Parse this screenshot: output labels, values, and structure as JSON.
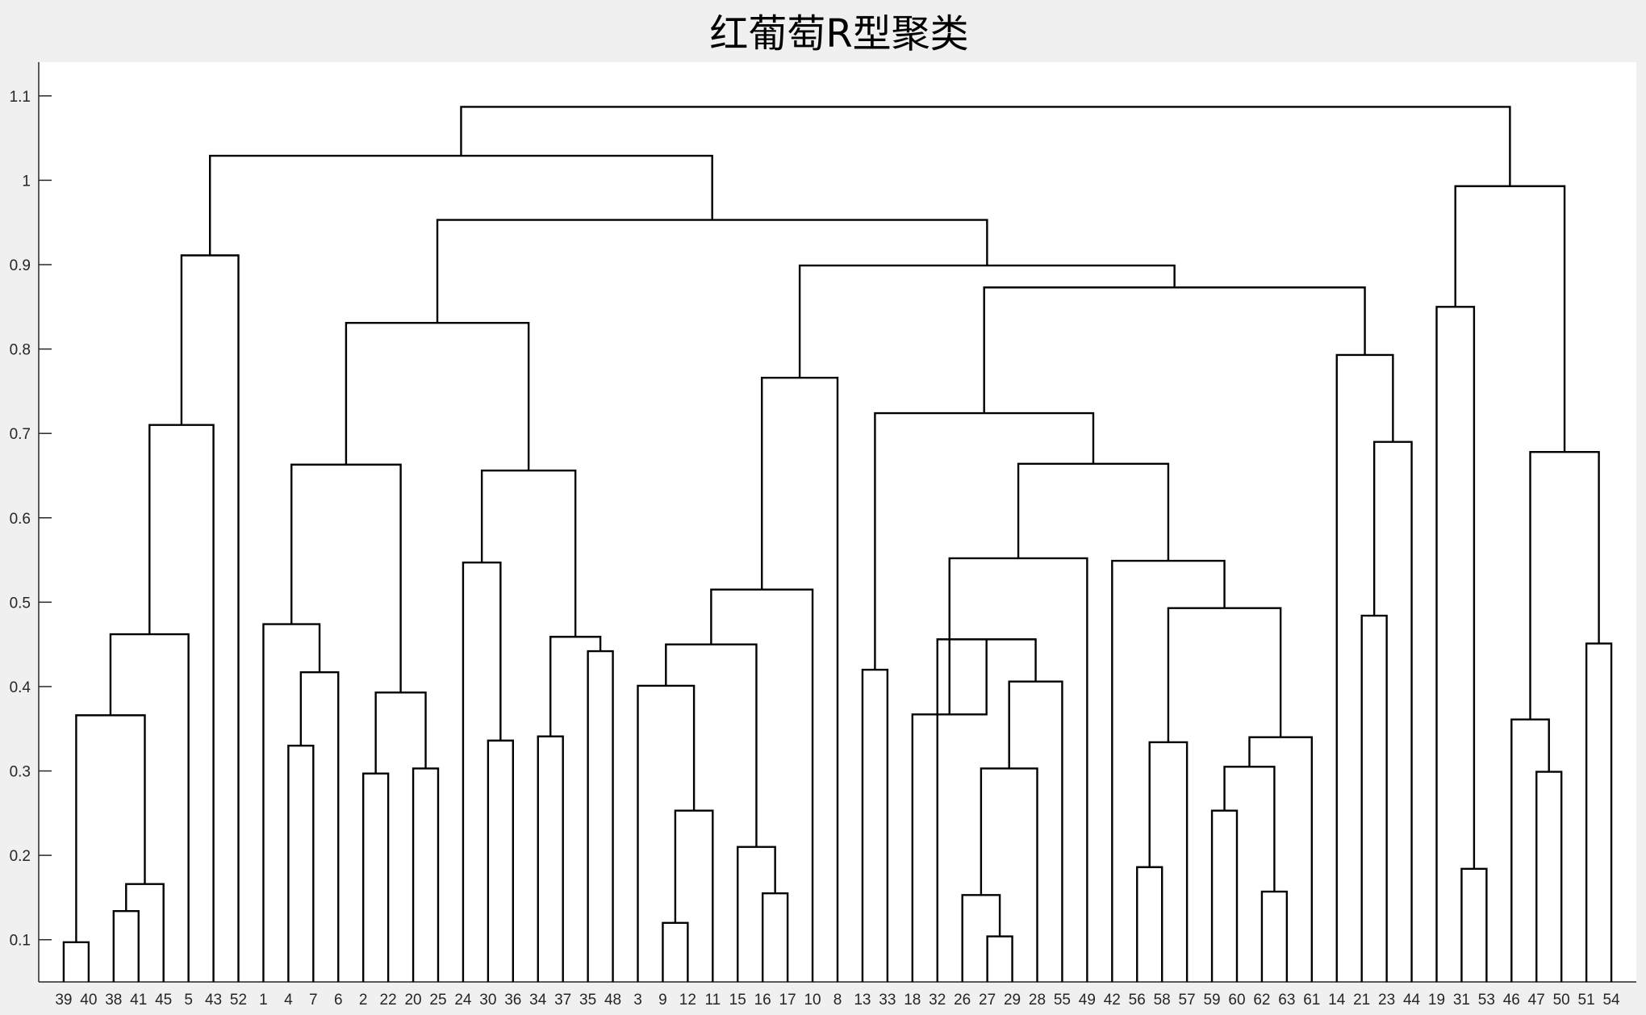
{
  "chart_data": {
    "type": "dendrogram",
    "title": "红葡萄R型聚类",
    "xlabel": "",
    "ylabel": "",
    "ylim": [
      0.05,
      1.14
    ],
    "yticks": [
      0.1,
      0.2,
      0.3,
      0.4,
      0.5,
      0.6,
      0.7,
      0.8,
      0.9,
      1,
      1.1
    ],
    "leaf_order": [
      "39",
      "40",
      "38",
      "41",
      "45",
      "5",
      "43",
      "52",
      "1",
      "4",
      "7",
      "6",
      "2",
      "22",
      "20",
      "25",
      "24",
      "30",
      "36",
      "34",
      "37",
      "35",
      "48",
      "3",
      "9",
      "12",
      "11",
      "15",
      "16",
      "17",
      "10",
      "8",
      "13",
      "33",
      "18",
      "32",
      "26",
      "27",
      "29",
      "28",
      "55",
      "49",
      "42",
      "56",
      "58",
      "57",
      "59",
      "60",
      "62",
      "63",
      "61",
      "14",
      "21",
      "23",
      "44",
      "19",
      "31",
      "53",
      "46",
      "47",
      "50",
      "51",
      "54"
    ],
    "merges": [
      {
        "a": "39",
        "b": "40",
        "h": 0.097
      },
      {
        "a": "38",
        "b": "41",
        "h": 0.134
      },
      {
        "a": "m2",
        "b": "45",
        "h": 0.166
      },
      {
        "a": "m1",
        "b": "m3",
        "h": 0.366
      },
      {
        "a": "m4",
        "b": "5",
        "h": 0.462
      },
      {
        "a": "m5",
        "b": "43",
        "h": 0.71
      },
      {
        "a": "m6",
        "b": "52",
        "h": 0.911
      },
      {
        "a": "4",
        "b": "7",
        "h": 0.33
      },
      {
        "a": "m8",
        "b": "6",
        "h": 0.417
      },
      {
        "a": "1",
        "b": "m9",
        "h": 0.474
      },
      {
        "a": "2",
        "b": "22",
        "h": 0.297
      },
      {
        "a": "20",
        "b": "25",
        "h": 0.303
      },
      {
        "a": "m11",
        "b": "m12",
        "h": 0.393
      },
      {
        "a": "m10",
        "b": "m13",
        "h": 0.663
      },
      {
        "a": "30",
        "b": "36",
        "h": 0.336
      },
      {
        "a": "24",
        "b": "m15",
        "h": 0.547
      },
      {
        "a": "34",
        "b": "37",
        "h": 0.341
      },
      {
        "a": "35",
        "b": "48",
        "h": 0.442
      },
      {
        "a": "m17",
        "b": "m18",
        "h": 0.459
      },
      {
        "a": "m16",
        "b": "m19",
        "h": 0.656
      },
      {
        "a": "m14",
        "b": "m20",
        "h": 0.831
      },
      {
        "a": "9",
        "b": "12",
        "h": 0.12
      },
      {
        "a": "m22",
        "b": "11",
        "h": 0.253
      },
      {
        "a": "3",
        "b": "m23",
        "h": 0.401
      },
      {
        "a": "16",
        "b": "17",
        "h": 0.155
      },
      {
        "a": "15",
        "b": "m25",
        "h": 0.21
      },
      {
        "a": "m24",
        "b": "m26",
        "h": 0.45
      },
      {
        "a": "m27",
        "b": "10",
        "h": 0.515
      },
      {
        "a": "m28",
        "b": "8",
        "h": 0.766
      },
      {
        "a": "13",
        "b": "33",
        "h": 0.42
      },
      {
        "a": "27",
        "b": "29",
        "h": 0.104
      },
      {
        "a": "26",
        "b": "m31",
        "h": 0.153
      },
      {
        "a": "m32",
        "b": "28",
        "h": 0.303
      },
      {
        "a": "m33",
        "b": "55",
        "h": 0.406
      },
      {
        "a": "32",
        "b": "m34",
        "h": 0.456
      },
      {
        "a": "18",
        "b": "m35",
        "h": 0.367
      },
      {
        "a": "m36",
        "b": "49",
        "h": 0.552
      },
      {
        "a": "56",
        "b": "58",
        "h": 0.186
      },
      {
        "a": "m38",
        "b": "57",
        "h": 0.334
      },
      {
        "a": "62",
        "b": "63",
        "h": 0.157
      },
      {
        "a": "59",
        "b": "60",
        "h": 0.253
      },
      {
        "a": "m41",
        "b": "m40",
        "h": 0.305
      },
      {
        "a": "m42",
        "b": "61",
        "h": 0.34
      },
      {
        "a": "m39",
        "b": "m43",
        "h": 0.493
      },
      {
        "a": "42",
        "b": "m44",
        "h": 0.549
      },
      {
        "a": "m37",
        "b": "m45",
        "h": 0.664
      },
      {
        "a": "m30",
        "b": "m46",
        "h": 0.724
      },
      {
        "a": "21",
        "b": "23",
        "h": 0.484
      },
      {
        "a": "m48",
        "b": "44",
        "h": 0.69
      },
      {
        "a": "14",
        "b": "m49",
        "h": 0.793
      },
      {
        "a": "m47",
        "b": "m50",
        "h": 0.873
      },
      {
        "a": "m29",
        "b": "m51",
        "h": 0.899
      },
      {
        "a": "m21",
        "b": "m52",
        "h": 0.953
      },
      {
        "a": "m7",
        "b": "m53",
        "h": 1.029
      },
      {
        "a": "31",
        "b": "53",
        "h": 0.184
      },
      {
        "a": "19",
        "b": "m55",
        "h": 0.85
      },
      {
        "a": "47",
        "b": "50",
        "h": 0.299
      },
      {
        "a": "46",
        "b": "m57",
        "h": 0.361
      },
      {
        "a": "51",
        "b": "54",
        "h": 0.451
      },
      {
        "a": "m58",
        "b": "m59",
        "h": 0.678
      },
      {
        "a": "m56",
        "b": "m60",
        "h": 0.993
      },
      {
        "a": "m54",
        "b": "m61",
        "h": 1.087
      }
    ]
  }
}
